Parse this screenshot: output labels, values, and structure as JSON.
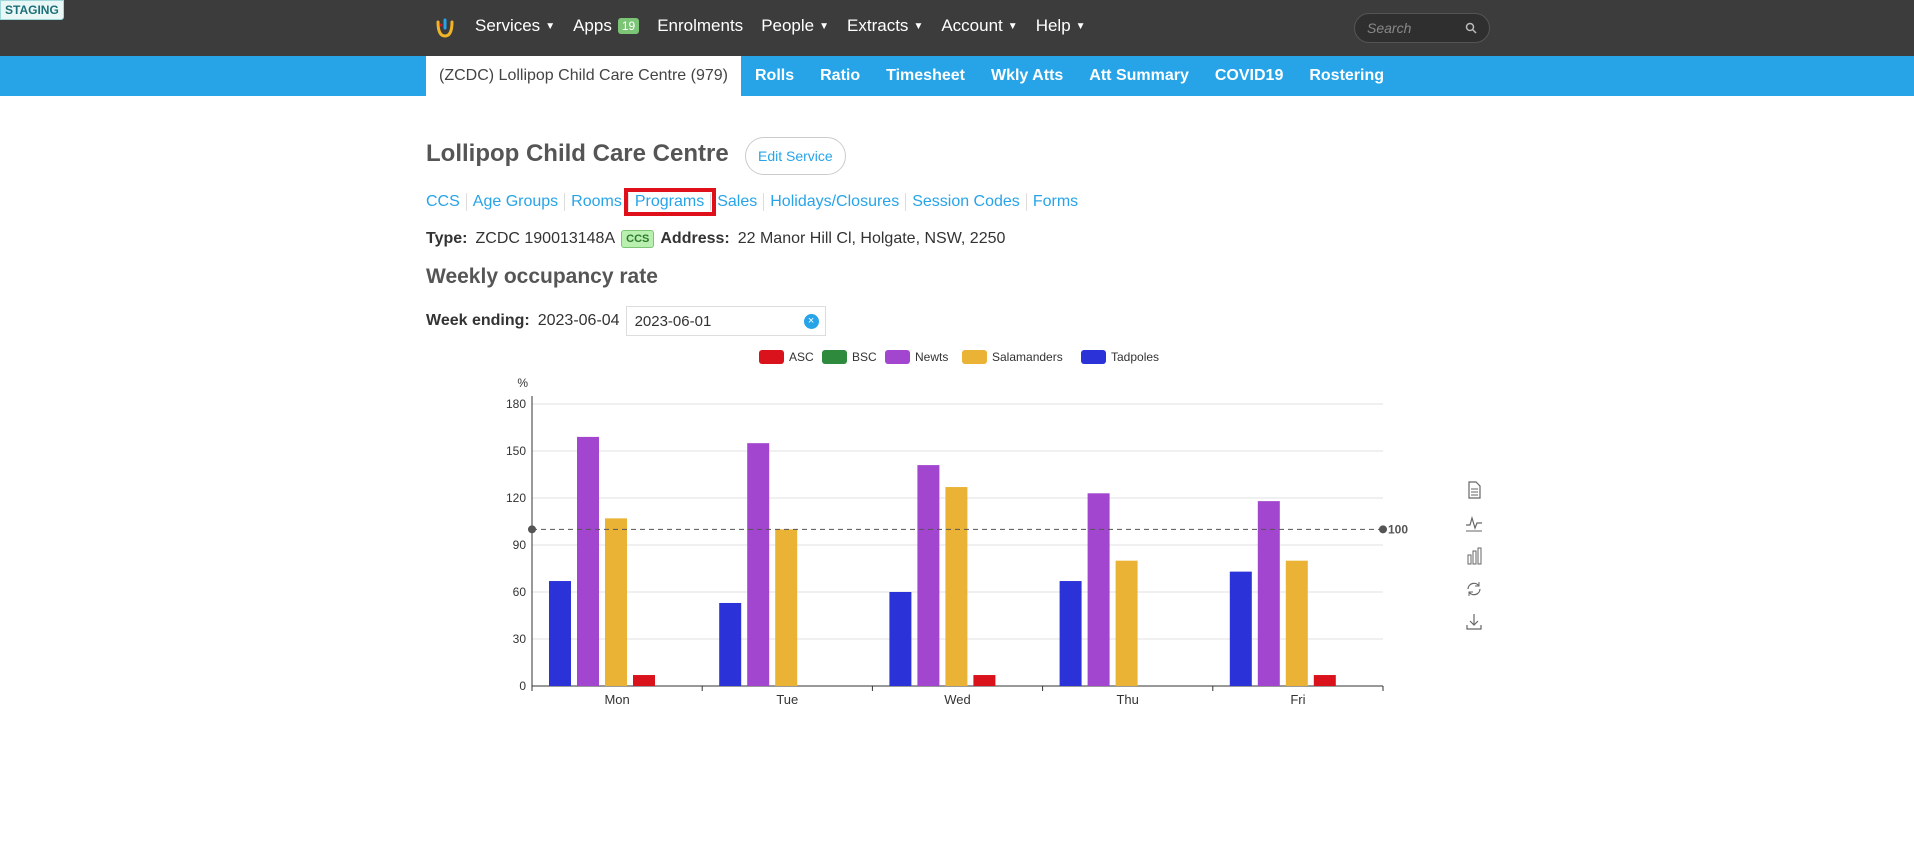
{
  "env": {
    "badge": "STAGING"
  },
  "topnav": {
    "items": [
      {
        "label": "Services",
        "dropdown": true
      },
      {
        "label": "Apps",
        "badge": "19"
      },
      {
        "label": "Enrolments"
      },
      {
        "label": "People",
        "dropdown": true
      },
      {
        "label": "Extracts",
        "dropdown": true
      },
      {
        "label": "Account",
        "dropdown": true
      },
      {
        "label": "Help",
        "dropdown": true
      }
    ],
    "search_placeholder": "Search"
  },
  "subnav": {
    "active": "(ZCDC) Lollipop Child Care Centre (979)",
    "tabs": [
      "Rolls",
      "Ratio",
      "Timesheet",
      "Wkly Atts",
      "Att Summary",
      "COVID19",
      "Rostering"
    ]
  },
  "page": {
    "title": "Lollipop Child Care Centre",
    "edit_button": "Edit Service",
    "links": [
      "CCS",
      "Age Groups",
      "Rooms",
      "Programs",
      "Sales",
      "Holidays/Closures",
      "Session Codes",
      "Forms"
    ],
    "highlighted_link": "Programs",
    "type_label": "Type:",
    "type_value": "ZCDC 190013148A",
    "type_badge": "CCS",
    "address_label": "Address:",
    "address_value": "22 Manor Hill Cl, Holgate, NSW, 2250",
    "section_title": "Weekly occupancy rate",
    "week_label": "Week ending:",
    "week_value": "2023-06-04",
    "date_input_value": "2023-06-01"
  },
  "colors": {
    "topbar": "#3c3c3c",
    "subbar": "#27a4e8",
    "link": "#27a4e8",
    "highlight": "#e0101a"
  },
  "chart_data": {
    "type": "bar",
    "categories": [
      "Mon",
      "Tue",
      "Wed",
      "Thu",
      "Fri"
    ],
    "series": [
      {
        "name": "Tadpoles",
        "color": "#2b32d8",
        "values": [
          67,
          53,
          60,
          67,
          73
        ]
      },
      {
        "name": "Newts",
        "color": "#a246cf",
        "values": [
          159,
          155,
          141,
          123,
          118
        ]
      },
      {
        "name": "Salamanders",
        "color": "#ebb336",
        "values": [
          107,
          100,
          127,
          80,
          80
        ]
      },
      {
        "name": "ASC",
        "color": "#d9121c",
        "values": [
          7,
          0,
          7,
          0,
          7
        ]
      },
      {
        "name": "BSC",
        "color": "#2e8b3e",
        "values": [
          0,
          0,
          0,
          0,
          0
        ]
      }
    ],
    "legend_order": [
      "ASC",
      "BSC",
      "Newts",
      "Salamanders",
      "Tadpoles"
    ],
    "ylabel": "%",
    "ylim": [
      0,
      180
    ],
    "yticks": [
      0,
      30,
      60,
      90,
      120,
      150,
      180
    ],
    "reference_line": {
      "value": 100,
      "label": "100"
    },
    "legend_position": "top-center",
    "grid": true
  }
}
